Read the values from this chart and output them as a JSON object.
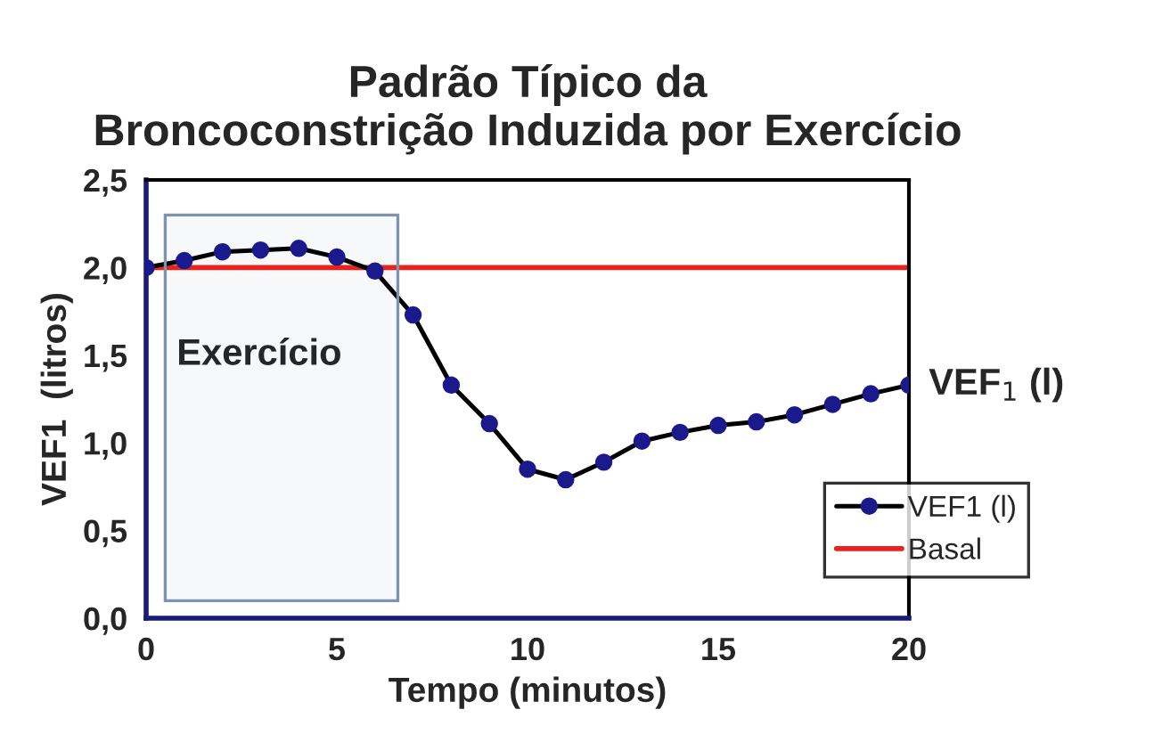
{
  "chart_data": {
    "type": "line",
    "title": "Padrão Típico da\nBroncoconstrição Induzida por Exercício",
    "xlabel": "Tempo (minutos)",
    "ylabel": "VEF1  (litros)",
    "xlim": [
      0,
      20
    ],
    "ylim": [
      0,
      2.5
    ],
    "xticks": [
      0,
      5,
      10,
      15,
      20
    ],
    "yticks": [
      {
        "value": 0,
        "label": "0,0"
      },
      {
        "value": 0.5,
        "label": "0,5"
      },
      {
        "value": 1,
        "label": "1,0"
      },
      {
        "value": 1.5,
        "label": "1,5"
      },
      {
        "value": 2,
        "label": "2,0"
      },
      {
        "value": 2.5,
        "label": "2,5"
      }
    ],
    "series": [
      {
        "name": "VEF1 (l)",
        "color": "#000000",
        "marker": "circle",
        "x": [
          0,
          1,
          2,
          3,
          4,
          5,
          6,
          7,
          8,
          9,
          10,
          11,
          12,
          13,
          14,
          15,
          16,
          17,
          18,
          19,
          20
        ],
        "values": [
          2.0,
          2.04,
          2.09,
          2.1,
          2.11,
          2.06,
          1.98,
          1.73,
          1.33,
          1.11,
          0.85,
          0.79,
          0.89,
          1.01,
          1.06,
          1.1,
          1.12,
          1.16,
          1.22,
          1.28,
          1.33
        ]
      },
      {
        "name": "Basal",
        "color": "#e8221c",
        "marker": "none",
        "x": [
          0,
          20
        ],
        "values": [
          2.0,
          2.0
        ]
      }
    ],
    "bands": [
      {
        "axis": "x",
        "from": 0.5,
        "to": 6.6,
        "label": "Exercício",
        "color": "#7f93b0"
      }
    ],
    "annotations": [
      {
        "text": "VEF$_{1}$ (l)",
        "x": 20,
        "y": 1.33
      }
    ],
    "legend": "bottom right",
    "grid": false
  }
}
